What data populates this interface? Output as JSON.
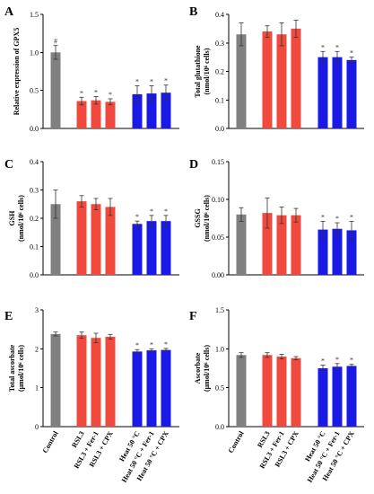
{
  "categories": [
    "Control",
    "RSL3",
    "RSL3 + Fer-1",
    "RSL3 + CPX",
    "Heat 50 °C",
    "Heat 50 °C + Fer-1",
    "Heat 50 °C + CPX"
  ],
  "bar_colors": [
    "#808080",
    "#f04a3e",
    "#f04a3e",
    "#f04a3e",
    "#1a1ae6",
    "#1a1ae6",
    "#1a1ae6"
  ],
  "chart_data": [
    {
      "panel": "A",
      "type": "bar",
      "ylabel": "Relative expression of GPX5",
      "ylim": [
        0,
        1.5
      ],
      "yticks": [
        "0.0",
        "0.5",
        "1.0",
        "1.5"
      ],
      "ytick_values": [
        0,
        0.5,
        1.0,
        1.5
      ],
      "values": [
        1.0,
        0.36,
        0.37,
        0.35,
        0.45,
        0.46,
        0.47
      ],
      "errors": [
        0.09,
        0.05,
        0.05,
        0.04,
        0.11,
        0.1,
        0.1
      ],
      "marks": [
        "#",
        "*",
        "*",
        "*",
        "*",
        "*",
        "*"
      ]
    },
    {
      "panel": "B",
      "type": "bar",
      "ylabel": [
        "Total glutathione",
        "(nmol/10⁶ cells)"
      ],
      "ylim": [
        0,
        0.4
      ],
      "yticks": [
        "0.0",
        "0.1",
        "0.2",
        "0.3",
        "0.4"
      ],
      "ytick_values": [
        0,
        0.1,
        0.2,
        0.3,
        0.4
      ],
      "values": [
        0.33,
        0.34,
        0.33,
        0.35,
        0.25,
        0.25,
        0.24
      ],
      "errors": [
        0.04,
        0.02,
        0.04,
        0.03,
        0.02,
        0.02,
        0.01
      ],
      "marks": [
        "",
        "",
        "",
        "",
        "*",
        "*",
        "*"
      ]
    },
    {
      "panel": "C",
      "type": "bar",
      "ylabel": [
        "GSH",
        "(nmol/10⁶ cells)"
      ],
      "ylim": [
        0,
        0.4
      ],
      "yticks": [
        "0.0",
        "0.1",
        "0.2",
        "0.3",
        "0.4"
      ],
      "ytick_values": [
        0,
        0.1,
        0.2,
        0.3,
        0.4
      ],
      "values": [
        0.25,
        0.26,
        0.25,
        0.24,
        0.18,
        0.19,
        0.19
      ],
      "errors": [
        0.05,
        0.02,
        0.02,
        0.03,
        0.01,
        0.02,
        0.02
      ],
      "marks": [
        "",
        "",
        "",
        "",
        "*",
        "*",
        "*"
      ]
    },
    {
      "panel": "D",
      "type": "bar",
      "ylabel": [
        "GSSG",
        "(nmol/10⁶ cells)"
      ],
      "ylim": [
        0,
        0.15
      ],
      "yticks": [
        "0.00",
        "0.05",
        "0.10",
        "0.15"
      ],
      "ytick_values": [
        0,
        0.05,
        0.1,
        0.15
      ],
      "values": [
        0.08,
        0.082,
        0.079,
        0.079,
        0.06,
        0.061,
        0.059
      ],
      "errors": [
        0.009,
        0.02,
        0.011,
        0.009,
        0.011,
        0.008,
        0.012
      ],
      "marks": [
        "",
        "",
        "",
        "",
        "*",
        "*",
        "*"
      ]
    },
    {
      "panel": "E",
      "type": "bar",
      "ylabel": [
        "Total ascorbate",
        "(μmol/10⁶ cells)"
      ],
      "ylim": [
        0,
        3
      ],
      "yticks": [
        "0",
        "1",
        "2",
        "3"
      ],
      "ytick_values": [
        0,
        1,
        2,
        3
      ],
      "values": [
        2.38,
        2.35,
        2.28,
        2.31,
        1.93,
        1.96,
        1.97
      ],
      "errors": [
        0.05,
        0.08,
        0.12,
        0.06,
        0.05,
        0.04,
        0.04
      ],
      "marks": [
        "",
        "",
        "",
        "",
        "*",
        "*",
        "*"
      ]
    },
    {
      "panel": "F",
      "type": "bar",
      "ylabel": [
        "Ascorbate",
        "(μmol/10⁶ cells)"
      ],
      "ylim": [
        0,
        1.5
      ],
      "yticks": [
        "0.0",
        "0.5",
        "1.0",
        "1.5"
      ],
      "ytick_values": [
        0,
        0.5,
        1.0,
        1.5
      ],
      "values": [
        0.92,
        0.92,
        0.9,
        0.88,
        0.75,
        0.77,
        0.78
      ],
      "errors": [
        0.03,
        0.03,
        0.03,
        0.02,
        0.04,
        0.04,
        0.02
      ],
      "marks": [
        "",
        "",
        "",
        "",
        "*",
        "*",
        "*"
      ]
    }
  ]
}
